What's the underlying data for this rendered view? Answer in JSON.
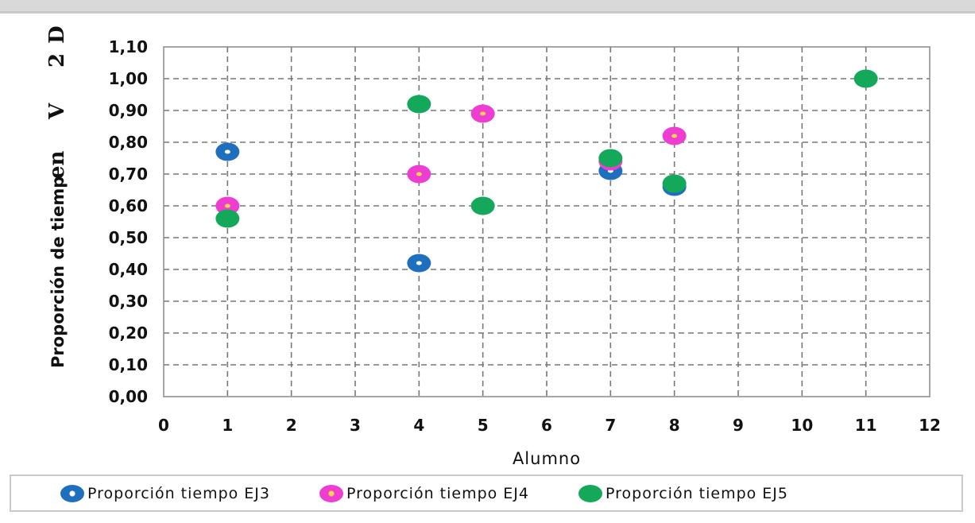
{
  "chart_data": {
    "type": "scatter",
    "xlabel": "Alumno",
    "ylabel": [
      "Proporción de tiemp",
      "en",
      "V",
      "2",
      "D"
    ],
    "xlim": [
      0,
      12
    ],
    "ylim": [
      0,
      1.1
    ],
    "x_ticks": [
      "0",
      "1",
      "2",
      "3",
      "4",
      "5",
      "6",
      "7",
      "8",
      "9",
      "10",
      "11",
      "12"
    ],
    "y_ticks": [
      "0,00",
      "0,10",
      "0,20",
      "0,30",
      "0,40",
      "0,50",
      "0,60",
      "0,70",
      "0,80",
      "0,90",
      "1,00",
      "1,10"
    ],
    "grid": true,
    "legend_position": "bottom",
    "series": [
      {
        "name": "Proporción tiempo EJ3",
        "color": "#1f6fbf",
        "center_color": "#ffffff",
        "points": [
          {
            "x": 1,
            "y": 0.77
          },
          {
            "x": 4,
            "y": 0.42
          },
          {
            "x": 7,
            "y": 0.71
          },
          {
            "x": 8,
            "y": 0.66
          }
        ]
      },
      {
        "name": "Proporción tiempo EJ4",
        "color": "#ee3ed2",
        "center_color": "#ffd24d",
        "points": [
          {
            "x": 1,
            "y": 0.6
          },
          {
            "x": 4,
            "y": 0.7
          },
          {
            "x": 5,
            "y": 0.89
          },
          {
            "x": 7,
            "y": 0.74
          },
          {
            "x": 8,
            "y": 0.82
          }
        ]
      },
      {
        "name": "Proporción tiempo EJ5",
        "color": "#14a85a",
        "center_color": "#14a85a",
        "points": [
          {
            "x": 1,
            "y": 0.56
          },
          {
            "x": 4,
            "y": 0.92
          },
          {
            "x": 5,
            "y": 0.6
          },
          {
            "x": 7,
            "y": 0.75
          },
          {
            "x": 8,
            "y": 0.67
          },
          {
            "x": 11,
            "y": 1.0
          }
        ]
      }
    ]
  }
}
